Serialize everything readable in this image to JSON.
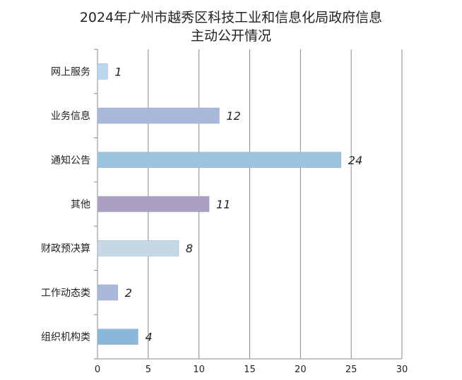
{
  "chart_data": {
    "type": "bar",
    "orientation": "horizontal",
    "title": "2024年广州市越秀区科技工业和信息化局政府信息",
    "subtitle": "主动公开情况",
    "categories": [
      "网上服务",
      "业务信息",
      "通知公告",
      "其他",
      "财政预决算",
      "工作动态类",
      "组织机构类"
    ],
    "values": [
      1,
      12,
      24,
      11,
      8,
      2,
      4
    ],
    "colors": [
      "#bcd6ec",
      "#a9b8da",
      "#9cc4de",
      "#ab9fc4",
      "#c5d9e4",
      "#a9b8da",
      "#8ab8d8"
    ],
    "xlim": [
      0,
      30
    ],
    "xticks": [
      0,
      5,
      10,
      15,
      20,
      25,
      30
    ],
    "grid": true,
    "legend": "none",
    "xlabel": "",
    "ylabel": ""
  }
}
